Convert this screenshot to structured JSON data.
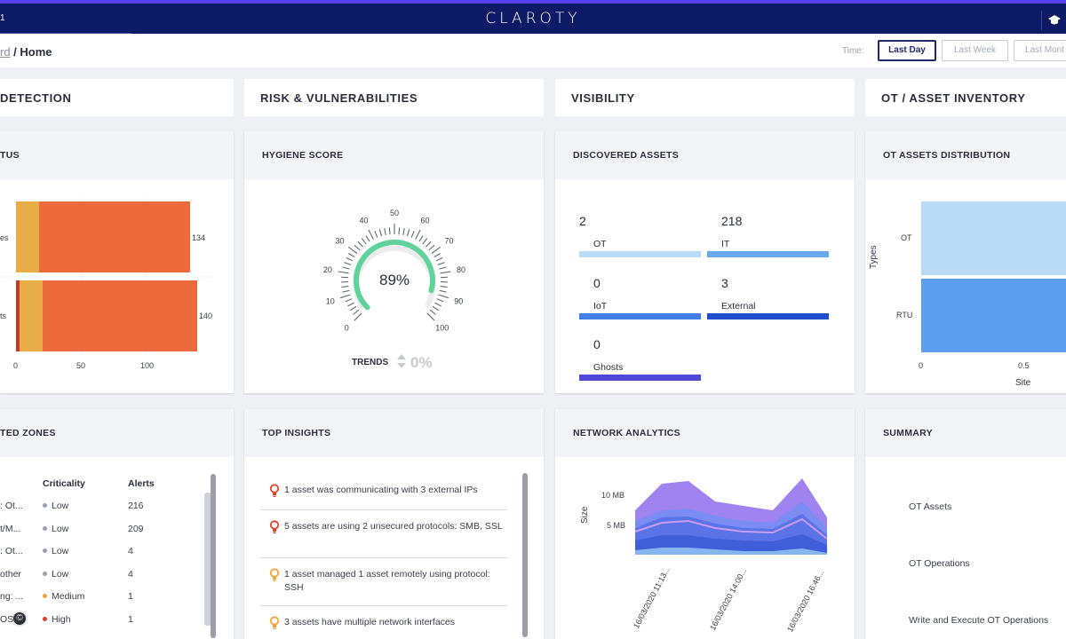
{
  "topbar": {
    "left_text": "1",
    "logo": "CLAROTY"
  },
  "breadcrumb": {
    "prev": "rd",
    "sep": " / ",
    "current": "Home"
  },
  "time": {
    "label": "Time:",
    "options": [
      "Last Day",
      "Last Week",
      "Last Mont"
    ]
  },
  "sections": [
    "DETECTION",
    "RISK & VULNERABILITIES",
    "VISIBILITY",
    "OT / ASSET INVENTORY"
  ],
  "cards": {
    "status": {
      "title": "TUS",
      "rows": [
        {
          "label": "es",
          "value": "134"
        },
        {
          "label": "ts",
          "value": "140"
        }
      ],
      "axis": [
        "0",
        "50",
        "100"
      ]
    },
    "hygiene": {
      "title": "HYGIENE SCORE",
      "score": "89%",
      "score_value": 89,
      "ticks": [
        "0",
        "10",
        "20",
        "30",
        "40",
        "50",
        "60",
        "70",
        "80",
        "90",
        "100"
      ],
      "trends_label": "TRENDS",
      "trends_value": "0%"
    },
    "discovered": {
      "title": "DISCOVERED ASSETS",
      "items": [
        {
          "count": "2",
          "label": "OT",
          "color": "#b9dbf7"
        },
        {
          "count": "218",
          "label": "IT",
          "color": "#6aa9ee"
        },
        {
          "count": "0",
          "label": "IoT",
          "color": "#3f7fe6"
        },
        {
          "count": "3",
          "label": "External",
          "color": "#1f4fcf"
        },
        {
          "count": "0",
          "label": "Ghosts",
          "color": "#5147d8"
        }
      ]
    },
    "ot_dist": {
      "title": "OT ASSETS DISTRIBUTION",
      "ylabel": "Types",
      "xlabel": "Site",
      "rows": [
        "OT",
        "RTU"
      ],
      "xticks": [
        "0",
        "0.5"
      ]
    },
    "zones": {
      "title": "TED ZONES",
      "headers": [
        "Criticality",
        "Alerts"
      ],
      "rows": [
        {
          "zone": ": Ot...",
          "crit": "Low",
          "alerts": "216",
          "color": "#9aa0b0"
        },
        {
          "zone": "t/M...",
          "crit": "Low",
          "alerts": "209",
          "color": "#9aa0b0"
        },
        {
          "zone": ": Ot...",
          "crit": "Low",
          "alerts": "4",
          "color": "#9aa0b0"
        },
        {
          "zone": "other",
          "crit": "Low",
          "alerts": "4",
          "color": "#9aa0b0"
        },
        {
          "zone": "ng: ...",
          "crit": "Medium",
          "alerts": "1",
          "color": "#f2a43a"
        },
        {
          "zone": "OSE",
          "crit": "High",
          "alerts": "1",
          "color": "#d8402c"
        }
      ]
    },
    "insights": {
      "title": "TOP INSIGHTS",
      "items": [
        {
          "text": "1 asset was communicating with 3 external IPs",
          "color": "#e0452e"
        },
        {
          "text": "5 assets are using 2 unsecured protocols: SMB, SSL",
          "color": "#e0452e"
        },
        {
          "text": "1 asset managed 1 asset remotely using protocol: SSH",
          "color": "#f2a43a"
        },
        {
          "text": "3 assets have multiple network interfaces",
          "color": "#f2a43a"
        }
      ]
    },
    "network": {
      "title": "NETWORK ANALYTICS",
      "ylabel": "Size",
      "yticks": [
        "10 MB",
        "5 MB"
      ],
      "xticks": [
        "16/03/2020 11:13...",
        "16/03/2020 14:00...",
        "16/03/2020 16:46..."
      ]
    },
    "summary": {
      "title": "SUMMARY",
      "items": [
        "OT Assets",
        "OT Operations",
        "Write and Execute OT Operations"
      ]
    }
  },
  "colors": {
    "brand": "#0d1a66",
    "accent": "#5a3df0",
    "gauge": "#5fd39a",
    "bar_main": "#ec6a3c",
    "bar_minor": "#e9ad48"
  }
}
